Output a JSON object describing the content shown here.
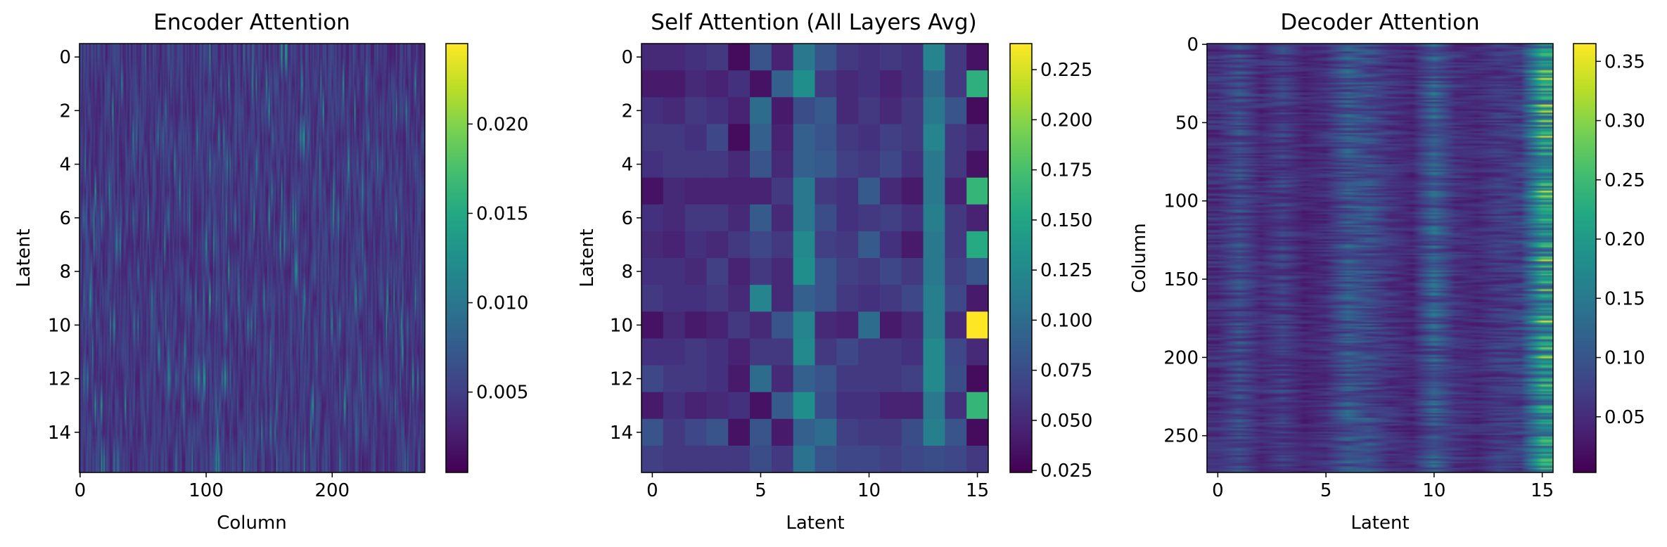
{
  "chart_data": [
    {
      "type": "heatmap",
      "title": "Encoder Attention",
      "xlabel": "Column",
      "ylabel": "Latent",
      "rows": 16,
      "cols": 274,
      "xlim": [
        -0.5,
        273.5
      ],
      "ylim": [
        15.5,
        -0.5
      ],
      "xticks": [
        0,
        100,
        200
      ],
      "yticks": [
        0,
        2,
        4,
        6,
        8,
        10,
        12,
        14
      ],
      "colorbar": {
        "min": 0.0005,
        "max": 0.0245,
        "ticks": [
          0.005,
          0.01,
          0.015,
          0.02
        ],
        "tick_labels": [
          "0.005",
          "0.010",
          "0.015",
          "0.020"
        ]
      },
      "colormap": "viridis",
      "pattern": "noisy near-uniform attention around 0.003-0.006 with sparse bright vertical streaks"
    },
    {
      "type": "heatmap",
      "title": "Self Attention (All Layers Avg)",
      "xlabel": "Latent",
      "ylabel": "Latent",
      "rows": 16,
      "cols": 16,
      "xlim": [
        -0.5,
        15.5
      ],
      "ylim": [
        15.5,
        -0.5
      ],
      "xticks": [
        0,
        5,
        10,
        15
      ],
      "yticks": [
        0,
        2,
        4,
        6,
        8,
        10,
        12,
        14
      ],
      "colorbar": {
        "min": 0.024,
        "max": 0.238,
        "ticks": [
          0.025,
          0.05,
          0.075,
          0.1,
          0.125,
          0.15,
          0.175,
          0.2,
          0.225
        ],
        "tick_labels": [
          "0.025",
          "0.050",
          "0.075",
          "0.100",
          "0.125",
          "0.150",
          "0.175",
          "0.200",
          "0.225"
        ]
      },
      "colormap": "viridis",
      "values": [
        [
          0.05,
          0.05,
          0.055,
          0.06,
          0.03,
          0.08,
          0.045,
          0.11,
          0.08,
          0.06,
          0.055,
          0.06,
          0.055,
          0.12,
          0.06,
          0.035
        ],
        [
          0.04,
          0.04,
          0.05,
          0.045,
          0.055,
          0.035,
          0.09,
          0.13,
          0.06,
          0.05,
          0.055,
          0.045,
          0.055,
          0.1,
          0.06,
          0.16
        ],
        [
          0.055,
          0.05,
          0.06,
          0.055,
          0.045,
          0.1,
          0.04,
          0.075,
          0.085,
          0.05,
          0.06,
          0.05,
          0.06,
          0.11,
          0.08,
          0.03
        ],
        [
          0.06,
          0.06,
          0.055,
          0.07,
          0.03,
          0.09,
          0.045,
          0.09,
          0.08,
          0.06,
          0.055,
          0.065,
          0.06,
          0.12,
          0.06,
          0.05
        ],
        [
          0.055,
          0.06,
          0.06,
          0.06,
          0.05,
          0.08,
          0.05,
          0.09,
          0.085,
          0.065,
          0.06,
          0.07,
          0.055,
          0.11,
          0.06,
          0.035
        ],
        [
          0.035,
          0.05,
          0.045,
          0.045,
          0.045,
          0.045,
          0.06,
          0.11,
          0.06,
          0.055,
          0.085,
          0.05,
          0.04,
          0.11,
          0.045,
          0.165
        ],
        [
          0.055,
          0.05,
          0.06,
          0.06,
          0.05,
          0.085,
          0.05,
          0.11,
          0.075,
          0.055,
          0.06,
          0.065,
          0.055,
          0.115,
          0.06,
          0.045
        ],
        [
          0.05,
          0.045,
          0.055,
          0.05,
          0.06,
          0.07,
          0.06,
          0.125,
          0.065,
          0.06,
          0.085,
          0.055,
          0.04,
          0.11,
          0.06,
          0.155
        ],
        [
          0.055,
          0.055,
          0.05,
          0.065,
          0.045,
          0.06,
          0.05,
          0.13,
          0.08,
          0.065,
          0.06,
          0.07,
          0.06,
          0.11,
          0.065,
          0.08
        ],
        [
          0.06,
          0.055,
          0.055,
          0.06,
          0.05,
          0.12,
          0.05,
          0.09,
          0.08,
          0.06,
          0.055,
          0.06,
          0.07,
          0.115,
          0.07,
          0.04
        ],
        [
          0.035,
          0.05,
          0.04,
          0.045,
          0.06,
          0.05,
          0.08,
          0.12,
          0.05,
          0.045,
          0.1,
          0.04,
          0.05,
          0.115,
          0.05,
          0.238
        ],
        [
          0.055,
          0.055,
          0.06,
          0.055,
          0.045,
          0.06,
          0.06,
          0.125,
          0.06,
          0.07,
          0.06,
          0.06,
          0.055,
          0.125,
          0.07,
          0.05
        ],
        [
          0.07,
          0.06,
          0.06,
          0.055,
          0.04,
          0.1,
          0.05,
          0.09,
          0.08,
          0.06,
          0.06,
          0.06,
          0.065,
          0.125,
          0.075,
          0.03
        ],
        [
          0.04,
          0.055,
          0.045,
          0.05,
          0.055,
          0.035,
          0.085,
          0.13,
          0.075,
          0.055,
          0.055,
          0.045,
          0.045,
          0.11,
          0.055,
          0.165
        ],
        [
          0.08,
          0.06,
          0.07,
          0.08,
          0.035,
          0.08,
          0.04,
          0.09,
          0.1,
          0.065,
          0.06,
          0.06,
          0.075,
          0.115,
          0.08,
          0.03
        ],
        [
          0.065,
          0.06,
          0.06,
          0.06,
          0.06,
          0.075,
          0.06,
          0.105,
          0.08,
          0.07,
          0.07,
          0.065,
          0.07,
          0.075,
          0.07,
          0.06
        ]
      ]
    },
    {
      "type": "heatmap",
      "title": "Decoder Attention",
      "xlabel": "Latent",
      "ylabel": "Column",
      "rows": 274,
      "cols": 16,
      "xlim": [
        -0.5,
        15.5
      ],
      "ylim": [
        273.5,
        -0.5
      ],
      "xticks": [
        0,
        5,
        10,
        15
      ],
      "yticks": [
        0,
        50,
        100,
        150,
        200,
        250
      ],
      "colorbar": {
        "min": 0.003,
        "max": 0.365,
        "ticks": [
          0.05,
          0.1,
          0.15,
          0.2,
          0.25,
          0.3,
          0.35
        ],
        "tick_labels": [
          "0.05",
          "0.10",
          "0.15",
          "0.20",
          "0.25",
          "0.30",
          "0.35"
        ]
      },
      "colormap": "viridis",
      "column_means": [
        0.055,
        0.09,
        0.05,
        0.075,
        0.045,
        0.055,
        0.105,
        0.095,
        0.06,
        0.045,
        0.115,
        0.06,
        0.05,
        0.07,
        0.075,
        0.19
      ]
    }
  ]
}
